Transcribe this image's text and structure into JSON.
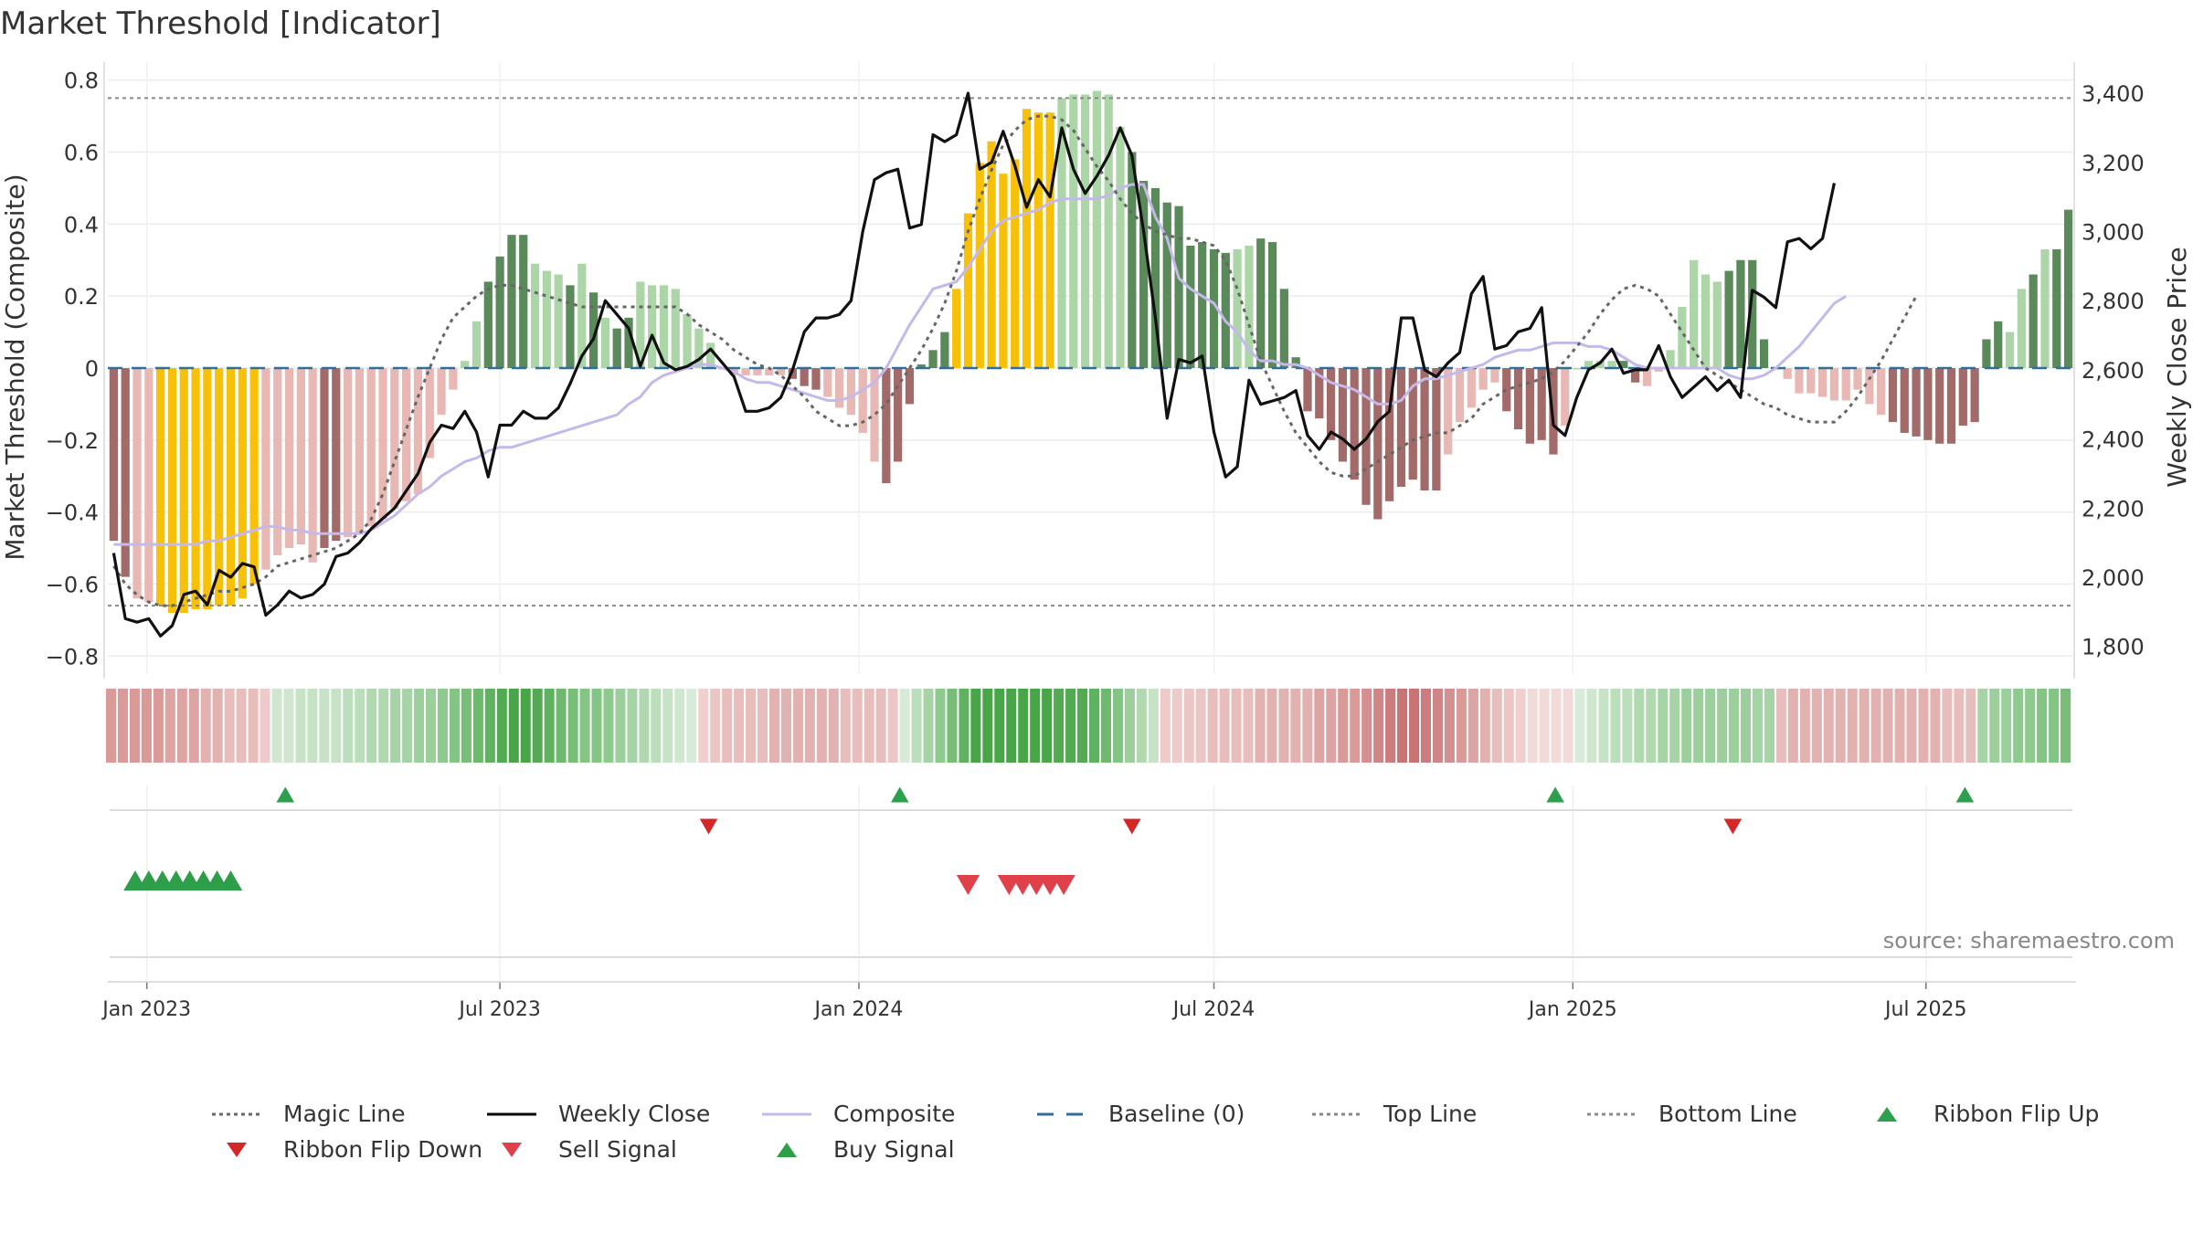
{
  "title": "Market Threshold [Indicator]",
  "source": "source: sharemaestro.com",
  "legend": [
    {
      "label": "Magic Line",
      "symbol": "dotted",
      "color": "#666666"
    },
    {
      "label": "Weekly Close",
      "symbol": "solid",
      "color": "#000000"
    },
    {
      "label": "Composite",
      "symbol": "solid",
      "color": "#c5b8ea"
    },
    {
      "label": "Baseline (0)",
      "symbol": "dashed",
      "color": "#2f6f9a"
    },
    {
      "label": "Top Line",
      "symbol": "dotted",
      "color": "#888888"
    },
    {
      "label": "Bottom Line",
      "symbol": "dotted",
      "color": "#888888"
    },
    {
      "label": "Ribbon Flip Up",
      "symbol": "triangle-up",
      "color": "#2ca04c"
    },
    {
      "label": "Ribbon Flip Down",
      "symbol": "triangle-down",
      "color": "#d62728"
    },
    {
      "label": "Sell Signal",
      "symbol": "triangle-down",
      "color": "#e0404a"
    },
    {
      "label": "Buy Signal",
      "symbol": "triangle-up",
      "color": "#2e9e48"
    }
  ],
  "chart_data": {
    "type": "bar",
    "ylabel": "Market Threshold (Composite)",
    "y2label": "Weekly Close Price",
    "ylim": [
      -0.85,
      0.85
    ],
    "y2lim": [
      1720,
      3490
    ],
    "yticks": [
      "0.8",
      "0.6",
      "0.4",
      "0.2",
      "0",
      "−0.2",
      "−0.4",
      "−0.6",
      "−0.8"
    ],
    "y2ticks": [
      "3,400",
      "3,200",
      "3,000",
      "2,800",
      "2,600",
      "2,400",
      "2,200",
      "2,000",
      "1,800"
    ],
    "xticks": [
      "Jan 2023",
      "Jul 2023",
      "Jan 2024",
      "Jul 2024",
      "Jan 2025",
      "Jul 2025"
    ],
    "x_start": "2022-12-12",
    "x_end": "2025-09-15",
    "top_line": 0.75,
    "bottom_line": -0.66,
    "colors": {
      "pos_dark": "#5a8a5a",
      "pos_light": "#acd6a8",
      "neg_dark": "#a26a68",
      "neg_light": "#e8b8b4",
      "extreme": "#f7c10a",
      "magic": "#666666",
      "close": "#111111",
      "composite": "#c5b8ea",
      "baseline": "#2f6f9a"
    },
    "composite_bars": [
      -0.48,
      -0.58,
      -0.64,
      -0.65,
      -0.66,
      -0.68,
      -0.68,
      -0.67,
      -0.67,
      -0.66,
      -0.66,
      -0.64,
      -0.6,
      -0.56,
      -0.52,
      -0.5,
      -0.49,
      -0.54,
      -0.5,
      -0.48,
      -0.47,
      -0.46,
      -0.44,
      -0.42,
      -0.39,
      -0.37,
      -0.35,
      -0.25,
      -0.13,
      -0.06,
      0.02,
      0.13,
      0.24,
      0.31,
      0.37,
      0.37,
      0.29,
      0.27,
      0.26,
      0.23,
      0.29,
      0.21,
      0.14,
      0.11,
      0.14,
      0.24,
      0.23,
      0.23,
      0.22,
      0.15,
      0.11,
      0.07,
      0.0,
      -0.02,
      -0.02,
      -0.02,
      -0.02,
      -0.02,
      -0.03,
      -0.05,
      -0.06,
      -0.08,
      -0.11,
      -0.13,
      -0.18,
      -0.26,
      -0.32,
      -0.26,
      -0.1,
      0.01,
      0.05,
      0.1,
      0.22,
      0.43,
      0.57,
      0.63,
      0.54,
      0.58,
      0.72,
      0.71,
      0.71,
      0.75,
      0.76,
      0.76,
      0.77,
      0.76,
      0.67,
      0.6,
      0.52,
      0.5,
      0.46,
      0.45,
      0.34,
      0.35,
      0.33,
      0.32,
      0.33,
      0.34,
      0.36,
      0.35,
      0.22,
      0.03,
      -0.12,
      -0.14,
      -0.2,
      -0.26,
      -0.31,
      -0.38,
      -0.42,
      -0.37,
      -0.33,
      -0.31,
      -0.34,
      -0.34,
      -0.24,
      -0.15,
      -0.11,
      -0.06,
      -0.04,
      -0.12,
      -0.17,
      -0.21,
      -0.2,
      -0.24,
      -0.16,
      0.0,
      0.02,
      0.02,
      0.02,
      0.02,
      -0.04,
      -0.05,
      -0.01,
      0.05,
      0.17,
      0.3,
      0.26,
      0.24,
      0.27,
      0.3,
      0.3,
      0.08,
      0.0,
      -0.03,
      -0.07,
      -0.07,
      -0.08,
      -0.09,
      -0.09,
      -0.06,
      -0.1,
      -0.13,
      -0.15,
      -0.18,
      -0.19,
      -0.2,
      -0.21,
      -0.21,
      -0.16,
      -0.15,
      0.08,
      0.13,
      0.1,
      0.22,
      0.26,
      0.33,
      0.33,
      0.44
    ],
    "bar_shades": "DDLLYYYYYYYYYLLLLLDDLLLLLLLLLLLLDDDDLLLDLDLDDLLLLLLLLLLLLLDDDLLLLLDDDDDDYYYYYYYYYLLLLLLDDDDDDDDDLLDDDDDDDDDDDDDDDDLLLLLDDDDDLLLLLDDLLLLLLLDDDDLLLLLLLLLLDDDDDDDDDDLLDLDDDD",
    "weekly_close": [
      2070,
      1880,
      1870,
      1880,
      1830,
      1860,
      1950,
      1960,
      1920,
      2020,
      2000,
      2040,
      2030,
      1890,
      1920,
      1960,
      1940,
      1950,
      1980,
      2060,
      2070,
      2100,
      2140,
      2170,
      2200,
      2250,
      2300,
      2390,
      2440,
      2430,
      2480,
      2420,
      2290,
      2440,
      2440,
      2480,
      2460,
      2460,
      2490,
      2560,
      2640,
      2690,
      2800,
      2760,
      2720,
      2610,
      2700,
      2620,
      2600,
      2610,
      2630,
      2660,
      2620,
      2580,
      2480,
      2480,
      2490,
      2520,
      2600,
      2710,
      2750,
      2750,
      2760,
      2800,
      3000,
      3150,
      3170,
      3180,
      3010,
      3020,
      3280,
      3260,
      3280,
      3400,
      3180,
      3200,
      3290,
      3190,
      3070,
      3150,
      3100,
      3300,
      3180,
      3110,
      3160,
      3220,
      3300,
      3220,
      3000,
      2750,
      2460,
      2630,
      2620,
      2640,
      2420,
      2290,
      2320,
      2570,
      2500,
      2510,
      2520,
      2540,
      2410,
      2370,
      2420,
      2400,
      2370,
      2400,
      2450,
      2480,
      2750,
      2750,
      2600,
      2580,
      2620,
      2650,
      2820,
      2870,
      2660,
      2670,
      2710,
      2720,
      2780,
      2440,
      2410,
      2520,
      2600,
      2620,
      2660,
      2590,
      2600,
      2600,
      2670,
      2580,
      2520,
      2550,
      2580,
      2540,
      2570,
      2520,
      2830,
      2810,
      2780,
      2970,
      2980,
      2950,
      2980,
      3140
    ],
    "composite_line": [
      -0.49,
      -0.49,
      -0.49,
      -0.49,
      -0.49,
      -0.49,
      -0.49,
      -0.49,
      -0.48,
      -0.48,
      -0.47,
      -0.46,
      -0.45,
      -0.44,
      -0.44,
      -0.45,
      -0.45,
      -0.46,
      -0.46,
      -0.46,
      -0.46,
      -0.46,
      -0.45,
      -0.43,
      -0.41,
      -0.38,
      -0.35,
      -0.33,
      -0.3,
      -0.28,
      -0.26,
      -0.25,
      -0.23,
      -0.22,
      -0.22,
      -0.21,
      -0.2,
      -0.19,
      -0.18,
      -0.17,
      -0.16,
      -0.15,
      -0.14,
      -0.13,
      -0.1,
      -0.08,
      -0.04,
      -0.02,
      -0.01,
      0.0,
      0.01,
      0.01,
      0.0,
      -0.01,
      -0.03,
      -0.04,
      -0.04,
      -0.05,
      -0.06,
      -0.07,
      -0.08,
      -0.09,
      -0.09,
      -0.08,
      -0.06,
      -0.04,
      0.0,
      0.06,
      0.12,
      0.17,
      0.22,
      0.23,
      0.24,
      0.28,
      0.33,
      0.38,
      0.41,
      0.42,
      0.43,
      0.44,
      0.46,
      0.47,
      0.47,
      0.47,
      0.47,
      0.48,
      0.5,
      0.51,
      0.51,
      0.42,
      0.36,
      0.25,
      0.22,
      0.2,
      0.18,
      0.13,
      0.1,
      0.05,
      0.02,
      0.02,
      0.01,
      0.01,
      0.0,
      -0.02,
      -0.04,
      -0.05,
      -0.06,
      -0.08,
      -0.1,
      -0.1,
      -0.09,
      -0.05,
      -0.03,
      -0.03,
      -0.02,
      -0.01,
      0.0,
      0.01,
      0.03,
      0.04,
      0.05,
      0.05,
      0.06,
      0.07,
      0.07,
      0.07,
      0.06,
      0.06,
      0.05,
      0.03,
      0.01,
      0.0,
      0.0,
      0.0,
      0.0,
      0.0,
      0.0,
      0.0,
      -0.02,
      -0.03,
      -0.03,
      -0.02,
      0.0,
      0.03,
      0.06,
      0.1,
      0.14,
      0.18,
      0.2
    ],
    "magic_line": [
      -0.55,
      -0.6,
      -0.63,
      -0.65,
      -0.66,
      -0.66,
      -0.65,
      -0.64,
      -0.63,
      -0.62,
      -0.62,
      -0.61,
      -0.6,
      -0.58,
      -0.55,
      -0.54,
      -0.53,
      -0.52,
      -0.51,
      -0.5,
      -0.48,
      -0.46,
      -0.42,
      -0.35,
      -0.26,
      -0.17,
      -0.08,
      0.0,
      0.08,
      0.14,
      0.17,
      0.2,
      0.22,
      0.23,
      0.23,
      0.22,
      0.21,
      0.2,
      0.19,
      0.18,
      0.17,
      0.17,
      0.17,
      0.17,
      0.17,
      0.17,
      0.17,
      0.17,
      0.17,
      0.15,
      0.12,
      0.1,
      0.08,
      0.05,
      0.03,
      0.01,
      0.0,
      -0.02,
      -0.05,
      -0.08,
      -0.12,
      -0.14,
      -0.16,
      -0.16,
      -0.15,
      -0.13,
      -0.1,
      -0.05,
      0.0,
      0.05,
      0.11,
      0.18,
      0.27,
      0.38,
      0.47,
      0.55,
      0.62,
      0.66,
      0.69,
      0.7,
      0.7,
      0.69,
      0.66,
      0.61,
      0.56,
      0.52,
      0.47,
      0.43,
      0.4,
      0.38,
      0.37,
      0.36,
      0.36,
      0.35,
      0.34,
      0.3,
      0.22,
      0.12,
      0.02,
      -0.05,
      -0.12,
      -0.18,
      -0.22,
      -0.26,
      -0.29,
      -0.3,
      -0.3,
      -0.28,
      -0.26,
      -0.24,
      -0.22,
      -0.2,
      -0.19,
      -0.18,
      -0.18,
      -0.16,
      -0.14,
      -0.1,
      -0.08,
      -0.06,
      -0.05,
      -0.04,
      -0.03,
      -0.01,
      0.02,
      0.06,
      0.1,
      0.15,
      0.19,
      0.22,
      0.23,
      0.22,
      0.2,
      0.15,
      0.1,
      0.05,
      0.0,
      -0.02,
      -0.04,
      -0.06,
      -0.08,
      -0.1,
      -0.11,
      -0.13,
      -0.14,
      -0.15,
      -0.15,
      -0.15,
      -0.12,
      -0.08,
      -0.03,
      0.02,
      0.08,
      0.14,
      0.2
    ],
    "ribbon_colors": [
      "#d99a98",
      "#d99a98",
      "#d99a98",
      "#d99a98",
      "#d99a98",
      "#dca4a2",
      "#dca4a2",
      "#dca4a2",
      "#e2b2b0",
      "#e2b2b0",
      "#e8bebc",
      "#e8bebc",
      "#e8bebc",
      "#eecaca",
      "#cfe7cf",
      "#cfe7cf",
      "#c6e3c6",
      "#c6e3c6",
      "#c6e3c6",
      "#c6e3c6",
      "#bbdebb",
      "#bbdebb",
      "#b0d9b0",
      "#b0d9b0",
      "#a6d4a6",
      "#a6d4a6",
      "#9ccf9c",
      "#9ccf9c",
      "#8ec98e",
      "#84c484",
      "#78be78",
      "#6eb96e",
      "#5fb25f",
      "#52ab52",
      "#48a648",
      "#48a648",
      "#52ab52",
      "#5fb25f",
      "#6eb96e",
      "#78be78",
      "#84c484",
      "#84c484",
      "#8ec98e",
      "#9ccf9c",
      "#a6d4a6",
      "#b0d9b0",
      "#bbdebb",
      "#c6e3c6",
      "#cfe7cf",
      "#d8ebd8",
      "#f0cfcd",
      "#ecc6c4",
      "#e8bebc",
      "#e8bebc",
      "#e8bebc",
      "#e8bebc",
      "#e2b2b0",
      "#e2b2b0",
      "#e2b2b0",
      "#e2b2b0",
      "#e2b2b0",
      "#e2b2b0",
      "#e8bebc",
      "#e8bebc",
      "#e8bebc",
      "#e8bebc",
      "#ecc6c4",
      "#d8ebd8",
      "#bbdebb",
      "#a6d4a6",
      "#8ec98e",
      "#78be78",
      "#5fb25f",
      "#48a648",
      "#48a648",
      "#48a648",
      "#48a648",
      "#48a648",
      "#48a648",
      "#48a648",
      "#52ab52",
      "#52ab52",
      "#52ab52",
      "#5fb25f",
      "#6eb96e",
      "#84c484",
      "#9ccf9c",
      "#b0d9b0",
      "#c6e3c6",
      "#eecaca",
      "#eecaca",
      "#ecc6c4",
      "#ecc6c4",
      "#e8bebc",
      "#e8bebc",
      "#e8bebc",
      "#e8bebc",
      "#e2b2b0",
      "#e2b2b0",
      "#e2b2b0",
      "#e2b2b0",
      "#e2b2b0",
      "#dca4a2",
      "#dca4a2",
      "#d99a98",
      "#d99a98",
      "#d49090",
      "#d08686",
      "#cc7c7c",
      "#c87474",
      "#c87474",
      "#cc7c7c",
      "#d08686",
      "#d49090",
      "#d99a98",
      "#dca4a2",
      "#e2b2b0",
      "#e8bebc",
      "#ecc6c4",
      "#f0cfcd",
      "#f2dad8",
      "#f2dad8",
      "#f2dad8",
      "#f2dad8",
      "#d8ebd8",
      "#cfe7cf",
      "#c6e3c6",
      "#bbdebb",
      "#bbdebb",
      "#b0d9b0",
      "#b0d9b0",
      "#a6d4a6",
      "#a6d4a6",
      "#9ccf9c",
      "#9ccf9c",
      "#9ccf9c",
      "#9ccf9c",
      "#9ccf9c",
      "#9ccf9c",
      "#a6d4a6",
      "#a6d4a6",
      "#e8bebc",
      "#e2b2b0",
      "#e2b2b0",
      "#e2b2b0",
      "#e2b2b0",
      "#e2b2b0",
      "#e2b2b0",
      "#e2b2b0",
      "#e2b2b0",
      "#e2b2b0",
      "#e2b2b0",
      "#e2b2b0",
      "#e2b2b0",
      "#e2b2b0",
      "#e8bebc",
      "#e8bebc",
      "#e8bebc",
      "#a6d4a6",
      "#9ccf9c",
      "#9ccf9c",
      "#8ec98e",
      "#8ec98e",
      "#84c484",
      "#84c484",
      "#78be78"
    ],
    "ribbon_flip_up": [
      "2023-03-13",
      "2024-01-22",
      "2024-12-23",
      "2025-07-21"
    ],
    "ribbon_flip_down": [
      "2023-10-16",
      "2024-05-20",
      "2025-03-24"
    ],
    "buy_signals": [
      "2022-12-26",
      "2023-01-02",
      "2023-01-09",
      "2023-01-16",
      "2023-01-23",
      "2023-01-30",
      "2023-02-06",
      "2023-02-13"
    ],
    "sell_signals": [
      "2024-02-26",
      "2024-03-18",
      "2024-03-25",
      "2024-04-01",
      "2024-04-08",
      "2024-04-15"
    ]
  }
}
